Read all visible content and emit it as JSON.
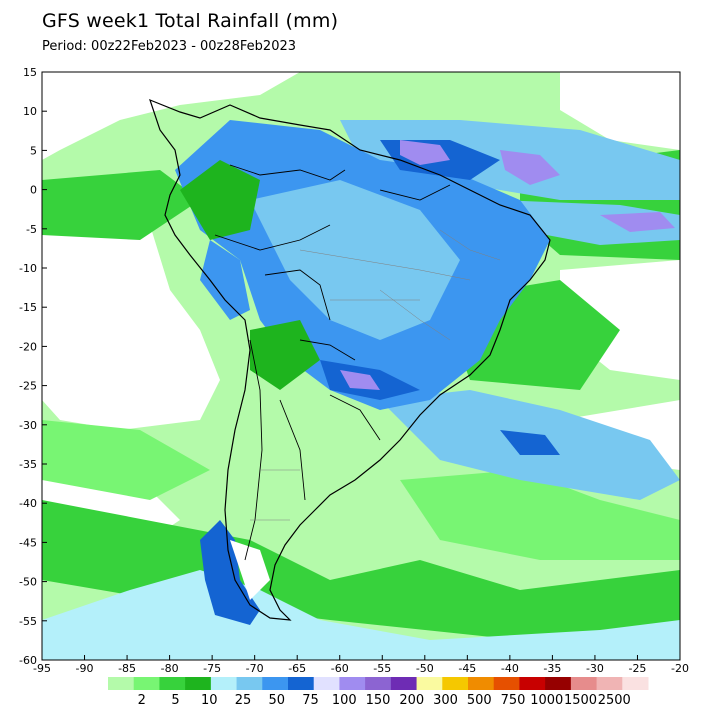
{
  "title": "GFS week1 Total Rainfall (mm)",
  "period": "Period: 00z22Feb2023 - 00z28Feb2023",
  "map": {
    "lon_range": [
      -95,
      -20
    ],
    "lat_range": [
      -60,
      15
    ],
    "lon_ticks": [
      "-95",
      "-90",
      "-85",
      "-80",
      "-75",
      "-70",
      "-65",
      "-60",
      "-55",
      "-50",
      "-45",
      "-40",
      "-35",
      "-30",
      "-25",
      "-20"
    ],
    "lat_ticks": [
      "15",
      "10",
      "5",
      "0",
      "-5",
      "-10",
      "-15",
      "-20",
      "-25",
      "-30",
      "-35",
      "-40",
      "-45",
      "-50",
      "-55",
      "-60"
    ]
  },
  "colorbar": {
    "levels": [
      "2",
      "5",
      "10",
      "25",
      "50",
      "75",
      "100",
      "150",
      "200",
      "300",
      "500",
      "750",
      "1000",
      "1500",
      "2500"
    ],
    "colors": [
      "#b4faaa",
      "#78f573",
      "#37d23c",
      "#1eb41e",
      "#b4f0fa",
      "#78c8f0",
      "#3c96f0",
      "#1464d2",
      "#e1e1ff",
      "#a08cf0",
      "#8c64d2",
      "#6e2cb4",
      "#fafaa0",
      "#f5c800",
      "#f08c00",
      "#e65000",
      "#c80000",
      "#960000",
      "#e68c8c",
      "#f0b4b4",
      "#fae1e1"
    ]
  }
}
